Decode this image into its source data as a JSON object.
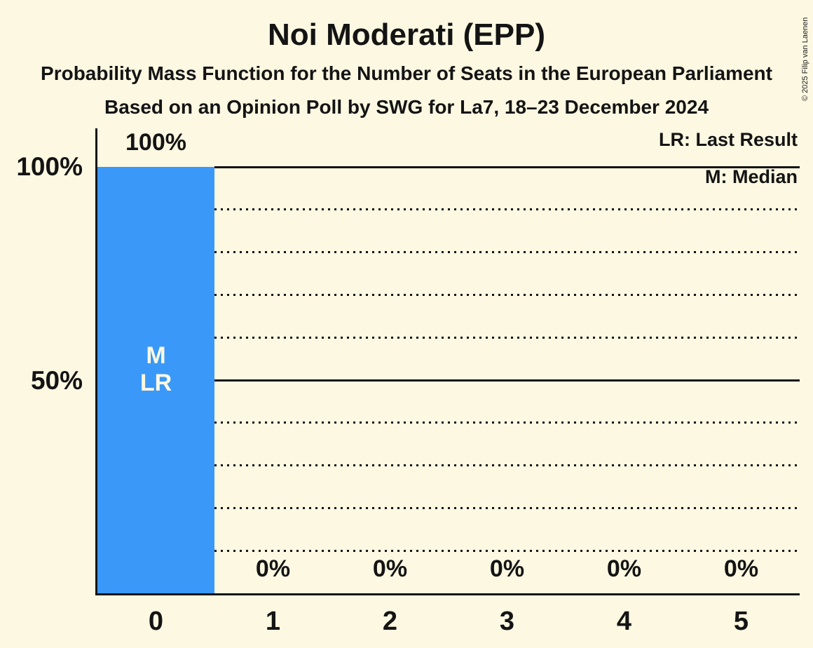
{
  "title": "Noi Moderati (EPP)",
  "subtitle1": "Probability Mass Function for the Number of Seats in the European Parliament",
  "subtitle2": "Based on an Opinion Poll by SWG for La7, 18–23 December 2024",
  "copyright": "© 2025 Filip van Laenen",
  "legend": {
    "last_result": "LR: Last Result",
    "median": "M: Median"
  },
  "y_axis": {
    "label_100": "100%",
    "label_50": "50%"
  },
  "bar_annotations": {
    "median": "M",
    "last_result": "LR"
  },
  "colors": {
    "background": "#FCF8E2",
    "bar": "#3A99F8",
    "text": "#141414"
  },
  "chart_data": {
    "type": "bar",
    "title": "Noi Moderati (EPP)",
    "subtitle": "Probability Mass Function for the Number of Seats in the European Parliament",
    "source": "Based on an Opinion Poll by SWG for La7, 18–23 December 2024",
    "categories": [
      "0",
      "1",
      "2",
      "3",
      "4",
      "5"
    ],
    "values": [
      100,
      0,
      0,
      0,
      0,
      0
    ],
    "value_labels": [
      "100%",
      "0%",
      "0%",
      "0%",
      "0%",
      "0%"
    ],
    "ylim": [
      0,
      100
    ],
    "ytick_labels": [
      "100%",
      "50%"
    ],
    "grid": "dotted horizontal lines every 10%, solid lines at 50% and 100%",
    "legend_entries": [
      "LR: Last Result",
      "M: Median"
    ],
    "legend_position": "top-right",
    "median_category": "0",
    "last_result_category": "0"
  }
}
